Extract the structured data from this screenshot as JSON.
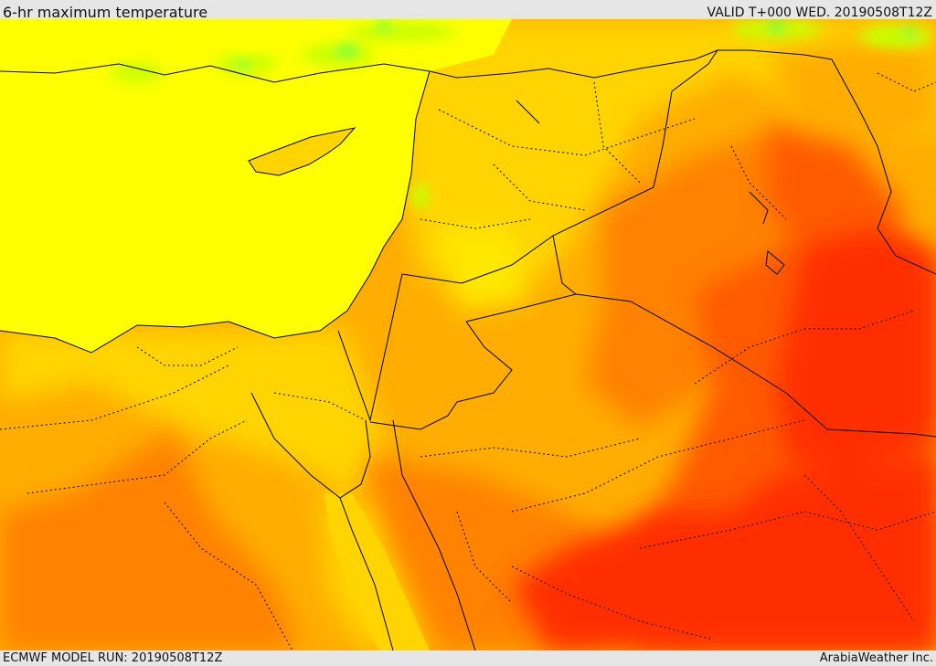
{
  "header": {
    "title": "6-hr maximum temperature",
    "valid": "VALID T+000 WED. 20190508T12Z"
  },
  "footer": {
    "model_run": "ECMWF MODEL RUN: 20190508T12Z",
    "credit": "ArabiaWeather Inc."
  },
  "map": {
    "layer": "6-hr maximum temperature",
    "colors": {
      "sea_yellow": "#ffff00",
      "light_orange": "#ffd400",
      "orange": "#ffad00",
      "dark_orange": "#ff8200",
      "red_orange": "#ff5a00",
      "red": "#ff2d00",
      "green": "#c8ff00",
      "bright_green": "#00ff3c",
      "borders": "#000000"
    }
  }
}
